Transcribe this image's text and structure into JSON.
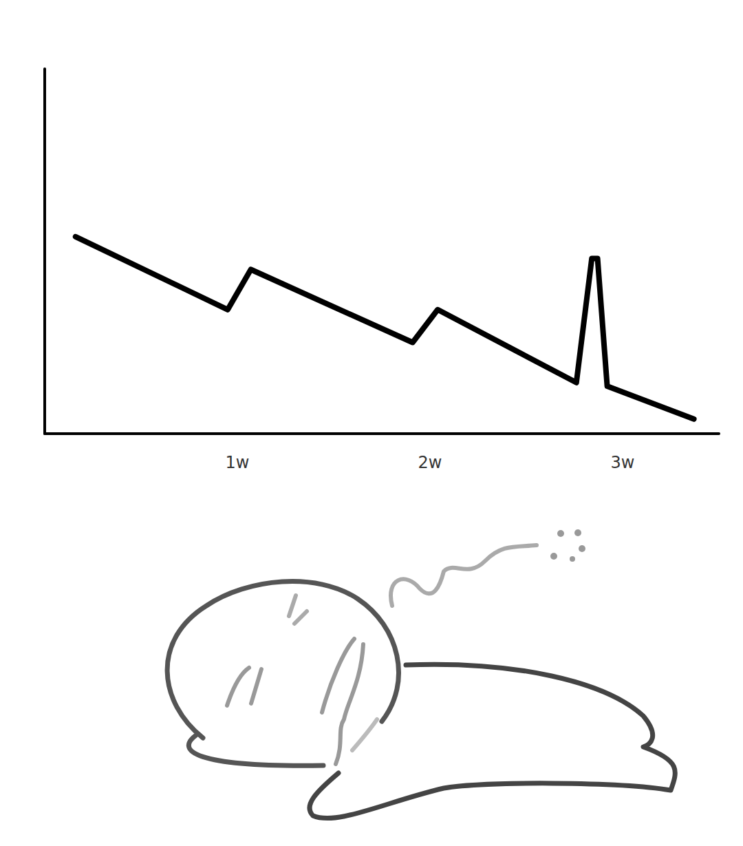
{
  "chart_data": {
    "type": "line",
    "x": [
      0.16,
      0.95,
      1.07,
      1.91,
      2.04,
      2.76,
      2.84,
      2.87,
      2.92,
      3.37
    ],
    "values": [
      54,
      34,
      45,
      25,
      34,
      14,
      48,
      48,
      13,
      4
    ],
    "color": "#000000",
    "xlim": [
      0,
      3.5
    ],
    "xticks": [
      {
        "value": 1,
        "label": "1w"
      },
      {
        "value": 2,
        "label": "2w"
      },
      {
        "value": 3,
        "label": "3w"
      }
    ],
    "ylim": [
      0,
      100
    ],
    "grid": false,
    "tick_labels": "x"
  }
}
